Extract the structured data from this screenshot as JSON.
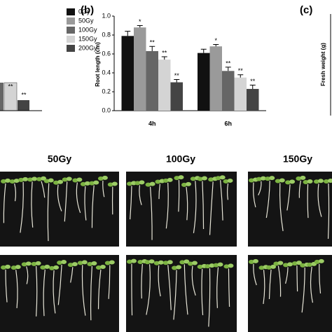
{
  "chart_data": {
    "type": "bar",
    "panel_label": "(b)",
    "y_label": "Root length (cm)",
    "categories": [
      "4h",
      "6h"
    ],
    "series": [
      {
        "name": "0Gy",
        "color": "#111111",
        "values": [
          0.79,
          0.61
        ],
        "errors": [
          0.05,
          0.04
        ],
        "marks": [
          null,
          null
        ]
      },
      {
        "name": "50Gy",
        "color": "#9a9a9a",
        "values": [
          0.88,
          0.68
        ],
        "errors": [
          0.02,
          0.02
        ],
        "marks": [
          "*",
          "*"
        ]
      },
      {
        "name": "100Gy",
        "color": "#666666",
        "values": [
          0.63,
          0.42
        ],
        "errors": [
          0.05,
          0.04
        ],
        "marks": [
          "**",
          "**"
        ]
      },
      {
        "name": "150Gy",
        "color": "#d4d4d4",
        "values": [
          0.54,
          0.35
        ],
        "errors": [
          0.03,
          0.03
        ],
        "marks": [
          "**",
          "**"
        ]
      },
      {
        "name": "200Gy",
        "color": "#444444",
        "values": [
          0.3,
          0.23
        ],
        "errors": [
          0.03,
          0.04
        ],
        "marks": [
          "**",
          "**"
        ]
      }
    ],
    "ylim": [
      0,
      1.0
    ],
    "yticks": [
      {
        "value": 0,
        "label": "0.0"
      },
      {
        "value": 0.2,
        "label": "0.2"
      },
      {
        "value": 0.4,
        "label": "0.4"
      },
      {
        "value": 0.6,
        "label": "0.6"
      },
      {
        "value": 0.8,
        "label": "0.8"
      },
      {
        "value": 1.0,
        "label": "1.0"
      }
    ]
  },
  "panel_a": {
    "marks": [
      "**",
      "**"
    ]
  },
  "panel_c": {
    "panel_label": "(c)",
    "y_label": "Fresh weight (g)"
  },
  "photos": {
    "labels": [
      "50Gy",
      "100Gy",
      "150Gy"
    ]
  }
}
